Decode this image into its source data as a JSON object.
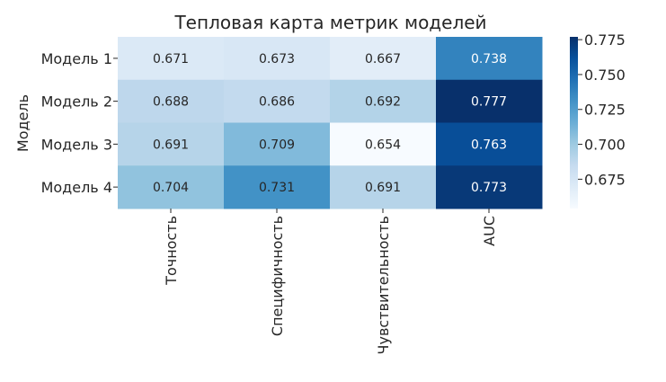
{
  "chart_data": {
    "type": "heatmap",
    "title": "Тепловая карта метрик моделей",
    "ylabel": "Модель",
    "xlabel": "",
    "rows": [
      "Модель 1",
      "Модель 2",
      "Модель 3",
      "Модель 4"
    ],
    "columns": [
      "Точность",
      "Специфичность",
      "Чувствительность",
      "AUC"
    ],
    "values": [
      [
        0.671,
        0.673,
        0.667,
        0.738
      ],
      [
        0.688,
        0.686,
        0.692,
        0.777
      ],
      [
        0.691,
        0.709,
        0.654,
        0.763
      ],
      [
        0.704,
        0.731,
        0.691,
        0.773
      ]
    ],
    "value_format": "3 decimals",
    "colormap": "Blues",
    "colorbar": {
      "min": 0.654,
      "max": 0.777,
      "ticks": [
        0.675,
        0.7,
        0.725,
        0.75,
        0.775
      ],
      "tick_labels": [
        "0.675",
        "0.700",
        "0.725",
        "0.750",
        "0.775"
      ]
    }
  }
}
